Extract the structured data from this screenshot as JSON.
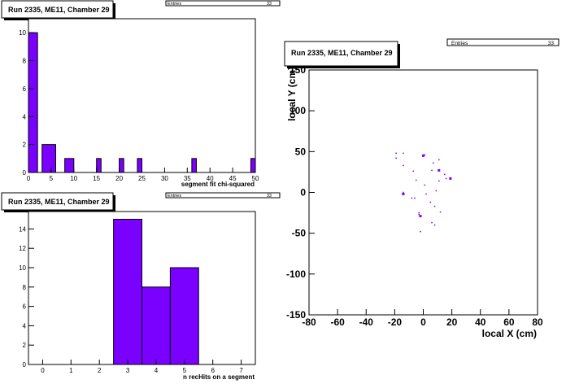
{
  "chart_data": [
    {
      "id": "chi2",
      "type": "bar",
      "title": "Run 2335, ME11, Chamber 29",
      "stats": {
        "entries_label": "Entries",
        "entries_value": "33"
      },
      "xlabel": "segment fit chi-squared",
      "ylabel": "",
      "xlim": [
        0,
        50
      ],
      "ylim": [
        0,
        11
      ],
      "xticks": [
        "0",
        "5",
        "10",
        "15",
        "20",
        "25",
        "30",
        "35",
        "40",
        "45",
        "50"
      ],
      "yticks": [
        "0",
        "2",
        "4",
        "6",
        "8",
        "10"
      ],
      "bins": [
        {
          "lo": 0,
          "hi": 2,
          "count": 10
        },
        {
          "lo": 3,
          "hi": 6,
          "count": 2
        },
        {
          "lo": 8,
          "hi": 10,
          "count": 1
        },
        {
          "lo": 15,
          "hi": 16,
          "count": 1
        },
        {
          "lo": 20,
          "hi": 21,
          "count": 1
        },
        {
          "lo": 24,
          "hi": 25,
          "count": 1
        },
        {
          "lo": 36,
          "hi": 37,
          "count": 1
        },
        {
          "lo": 49,
          "hi": 50,
          "count": 1
        }
      ],
      "color": "#7a00ff"
    },
    {
      "id": "nhits",
      "type": "bar",
      "title": "Run 2335, ME11, Chamber 29",
      "stats": {
        "entries_label": "Entries",
        "entries_value": "33"
      },
      "xlabel": "n recHits on a segment",
      "ylabel": "",
      "xlim": [
        -0.5,
        7.5
      ],
      "ylim": [
        0,
        15.8
      ],
      "xticks": [
        "0",
        "1",
        "2",
        "3",
        "4",
        "5",
        "6",
        "7"
      ],
      "yticks": [
        "0",
        "2",
        "4",
        "6",
        "8",
        "10",
        "12",
        "14"
      ],
      "bins": [
        {
          "lo": 2.5,
          "hi": 3.5,
          "count": 15
        },
        {
          "lo": 3.5,
          "hi": 4.5,
          "count": 8
        },
        {
          "lo": 4.5,
          "hi": 5.5,
          "count": 10
        }
      ],
      "color": "#7a00ff"
    },
    {
      "id": "xy",
      "type": "scatter",
      "title": "Run 2335, ME11, Chamber 29",
      "stats": {
        "entries_label": "Entries",
        "entries_value": "33"
      },
      "xlabel": "local X (cm)",
      "ylabel": "local Y (cm)",
      "xlim": [
        -80,
        80
      ],
      "ylim": [
        -150,
        150
      ],
      "xticks": [
        "-80",
        "-60",
        "-40",
        "-20",
        "0",
        "20",
        "40",
        "60",
        "80"
      ],
      "yticks": [
        "-150",
        "-100",
        "-50",
        "0",
        "50",
        "100",
        "150"
      ],
      "points": [
        [
          -19,
          48
        ],
        [
          -19,
          42
        ],
        [
          -14,
          48
        ],
        [
          -14,
          33
        ],
        [
          -7,
          26
        ],
        [
          0,
          45
        ],
        [
          1,
          46
        ],
        [
          11,
          40
        ],
        [
          7,
          36
        ],
        [
          6,
          27
        ],
        [
          15,
          22
        ],
        [
          -5,
          15
        ],
        [
          11,
          14
        ],
        [
          16,
          17
        ],
        [
          19,
          17
        ],
        [
          1,
          9
        ],
        [
          -14,
          0
        ],
        [
          -8,
          -7
        ],
        [
          -6,
          -7
        ],
        [
          2,
          -2
        ],
        [
          9,
          2
        ],
        [
          -3,
          -25
        ],
        [
          -3,
          -27
        ],
        [
          5,
          -12
        ],
        [
          8,
          -17
        ],
        [
          12,
          -24
        ],
        [
          -2,
          -48
        ],
        [
          6,
          -37
        ],
        [
          8,
          -40
        ]
      ],
      "bold_points": [
        [
          0,
          45
        ],
        [
          11,
          27
        ],
        [
          -14,
          -2
        ],
        [
          -2,
          -29
        ],
        [
          19,
          17
        ]
      ],
      "color": "#7a00ff"
    }
  ]
}
